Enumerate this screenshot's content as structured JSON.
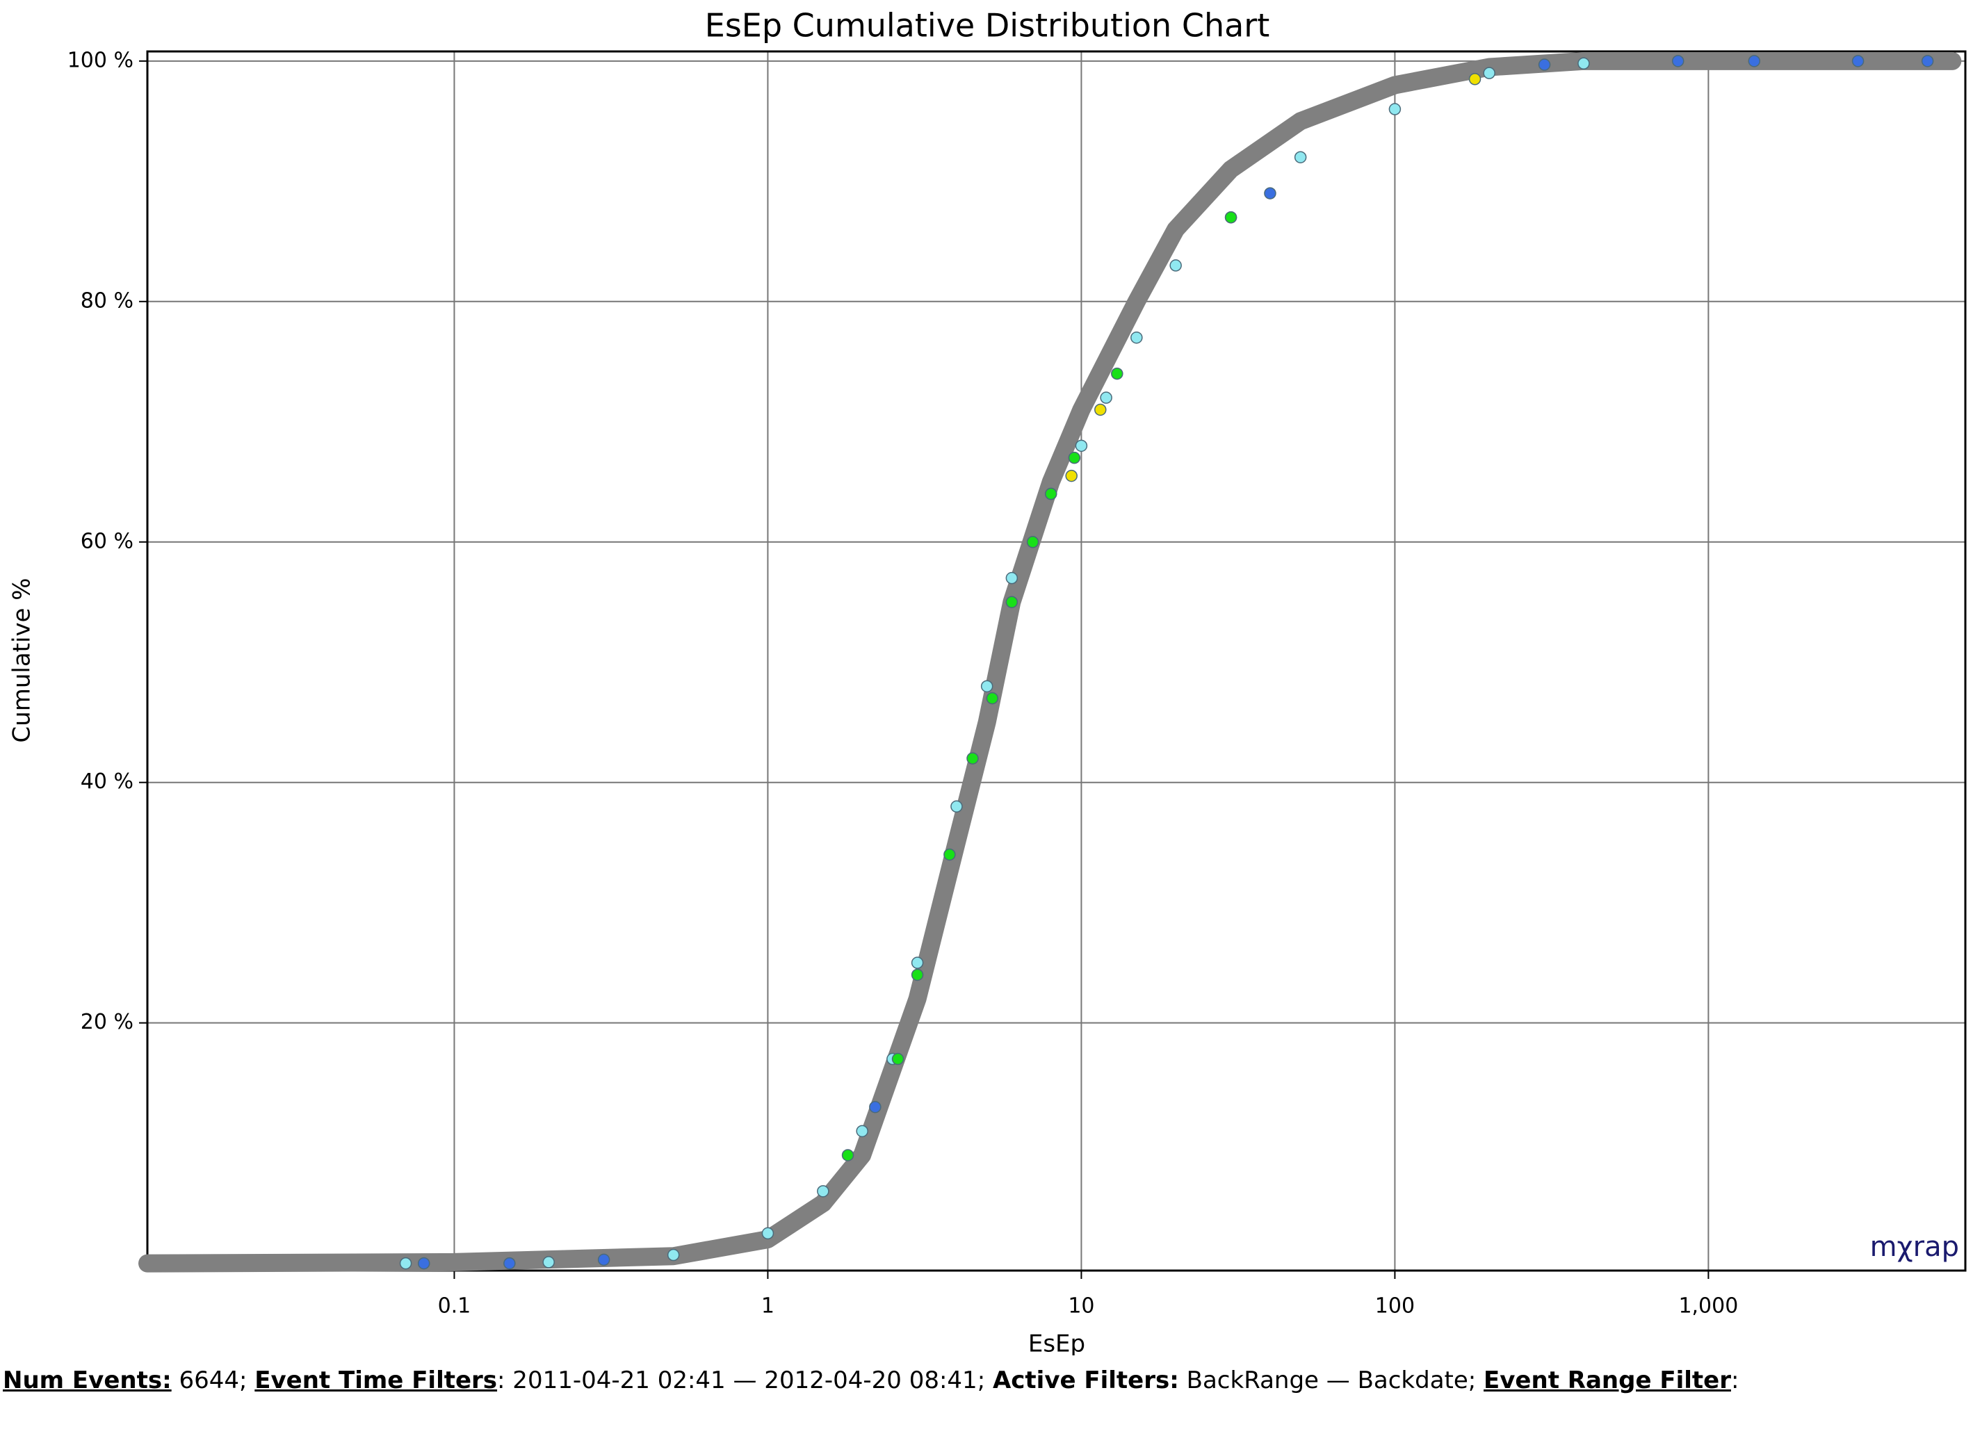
{
  "chart_data": {
    "type": "cdf",
    "title": "EsEp Cumulative Distribution Chart",
    "x_label": "EsEp",
    "y_label": "Cumulative %",
    "log_x": true,
    "grid": true,
    "xlim": [
      0.0105,
      6600
    ],
    "xticks": [
      0.1,
      1,
      10,
      100,
      {
        "value": 1000,
        "label": "1,000"
      }
    ],
    "ylim": [
      -0.6,
      100.8
    ],
    "yticks": [
      {
        "value": 20,
        "label": "20 %"
      },
      {
        "value": 40,
        "label": "40 %"
      },
      {
        "value": 60,
        "label": "60 %"
      },
      {
        "value": 80,
        "label": "80 %"
      },
      {
        "value": 100,
        "label": "100 %"
      }
    ],
    "series": [
      {
        "marker": false,
        "color": "#808080",
        "x": [
          0.0105,
          0.1,
          0.5,
          1,
          1.5,
          2,
          3,
          4,
          5,
          6,
          8,
          10,
          15,
          20,
          30,
          50,
          100,
          200,
          400,
          1000,
          6000
        ],
        "values": [
          0,
          0.1,
          0.6,
          2,
          5,
          9,
          22,
          35,
          45,
          55,
          65,
          71,
          80,
          86,
          91,
          95,
          98,
          99.5,
          100,
          100,
          100
        ]
      },
      {
        "marker": true,
        "color": "#90e8f0",
        "x": [
          0.07,
          0.2,
          0.5,
          1,
          1.5,
          2,
          2.5,
          3,
          4,
          5,
          6,
          8,
          10,
          12,
          15,
          20,
          30,
          50,
          100,
          200,
          400
        ],
        "values": [
          0,
          0.1,
          0.7,
          2.5,
          6,
          11,
          17,
          25,
          38,
          48,
          57,
          64,
          68,
          72,
          77,
          83,
          87,
          92,
          96,
          99,
          99.8
        ]
      },
      {
        "marker": true,
        "color": "#3a6fe0",
        "x": [
          0.08,
          0.15,
          0.3,
          2.2,
          40,
          300,
          800,
          1400,
          3000,
          5000
        ],
        "values": [
          0,
          0,
          0.3,
          13,
          89,
          99.7,
          100,
          100,
          100,
          100
        ]
      },
      {
        "marker": true,
        "color": "#18e018",
        "x": [
          1.8,
          2.6,
          3,
          3.8,
          4.5,
          5.2,
          6,
          7,
          8,
          9.5,
          13,
          30
        ],
        "values": [
          9,
          17,
          24,
          34,
          42,
          47,
          55,
          60,
          64,
          67,
          74,
          87
        ]
      },
      {
        "marker": true,
        "color": "#f0e000",
        "x": [
          9.3,
          11.5,
          180
        ],
        "values": [
          65.5,
          71,
          98.5
        ]
      }
    ]
  },
  "logo": "mχrap",
  "footer": {
    "segments": [
      {
        "text": "Num Events:",
        "bold": true,
        "underline": true
      },
      {
        "text": " 6644; ",
        "bold": false,
        "underline": false
      },
      {
        "text": "Event Time Filters",
        "bold": true,
        "underline": true
      },
      {
        "text": ": 2011-04-21 02:41 — 2012-04-20 08:41; ",
        "bold": false,
        "underline": false
      },
      {
        "text": "Active Filters:",
        "bold": true,
        "underline": false
      },
      {
        "text": " BackRange — Backdate; ",
        "bold": false,
        "underline": false
      },
      {
        "text": "Event Range Filter",
        "bold": true,
        "underline": true
      },
      {
        "text": ":",
        "bold": false,
        "underline": false
      }
    ]
  }
}
